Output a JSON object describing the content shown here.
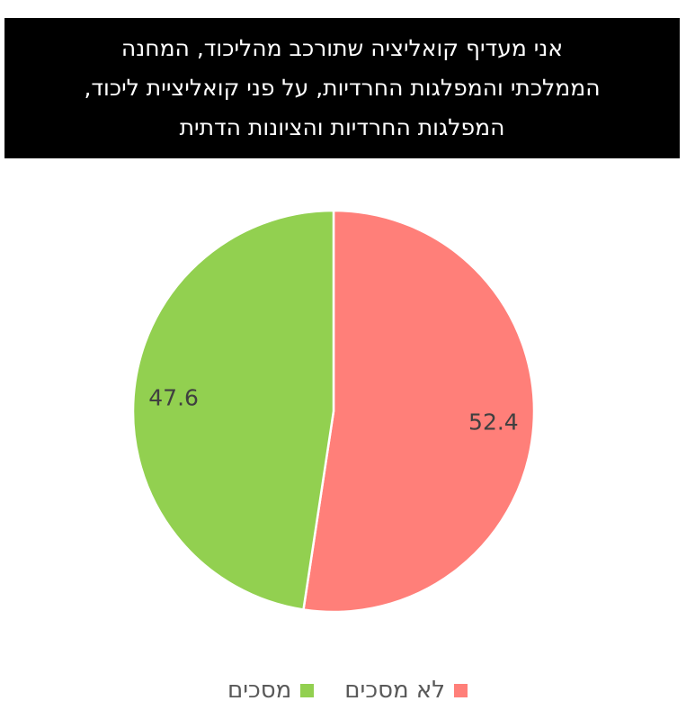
{
  "title": {
    "lines": [
      "אני מעדיף קואליציה שתורכב מהליכוד, המחנה",
      "הממלכתי והמפלגות החרדיות, על פני קואליציית ליכוד,",
      "המפלגות החרדיות והציונות הדתית"
    ]
  },
  "chart_data": {
    "type": "pie",
    "slices": [
      {
        "label": "לא מסכים",
        "value": 52.4,
        "color": "#FF7F79"
      },
      {
        "label": "מסכים",
        "value": 47.6,
        "color": "#92D050"
      }
    ],
    "legend_position": "bottom"
  },
  "legend": {
    "items": [
      {
        "label": "לא מסכים",
        "color": "#FF7F79"
      },
      {
        "label": "מסכים",
        "color": "#92D050"
      }
    ]
  }
}
